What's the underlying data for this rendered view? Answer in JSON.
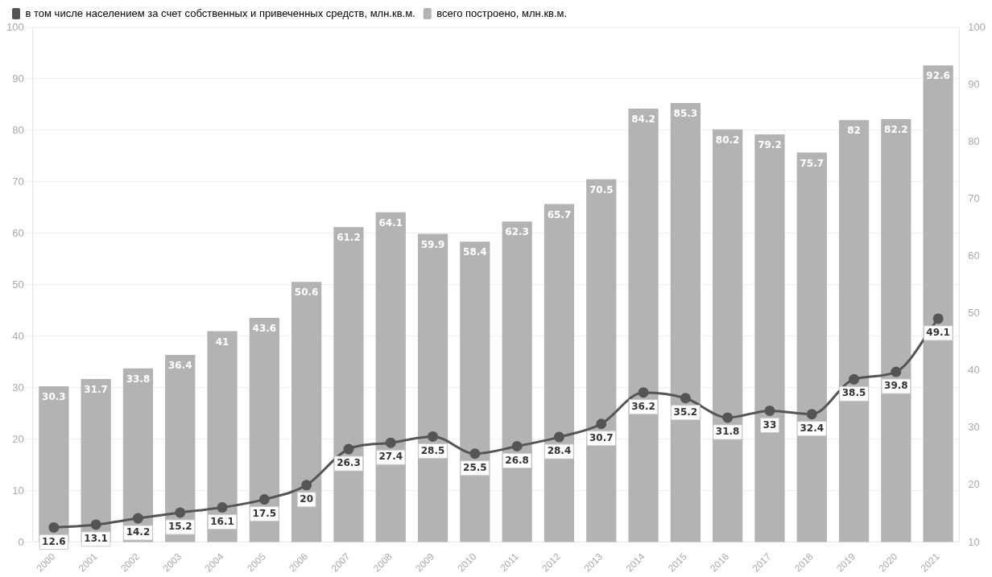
{
  "chart_data": {
    "type": "bar",
    "categories": [
      "2000",
      "2001",
      "2002",
      "2003",
      "2004",
      "2005",
      "2006",
      "2007",
      "2008",
      "2009",
      "2010",
      "2011",
      "2012",
      "2013",
      "2014",
      "2015",
      "2016",
      "2017",
      "2018",
      "2019",
      "2020",
      "2021"
    ],
    "series": [
      {
        "name": "в том числе населением за счет собственных и привеченных средств, млн.кв.м.",
        "type": "line",
        "axis": "y2",
        "color": "#555555",
        "values": [
          12.6,
          13.1,
          14.2,
          15.2,
          16.1,
          17.5,
          20,
          26.3,
          27.4,
          28.5,
          25.5,
          26.8,
          28.4,
          30.7,
          36.2,
          35.2,
          31.8,
          33,
          32.4,
          38.5,
          39.8,
          49.1
        ]
      },
      {
        "name": "всего построено, млн.кв.м.",
        "color": "#b3b3b3",
        "values": [
          30.3,
          31.7,
          33.8,
          36.4,
          41,
          43.6,
          50.6,
          61.2,
          64.1,
          59.9,
          58.4,
          62.3,
          65.7,
          70.5,
          84.2,
          85.3,
          80.2,
          79.2,
          75.7,
          82,
          82.2,
          92.6
        ]
      }
    ],
    "ylim": [
      0,
      100
    ],
    "yticks": [
      0,
      10,
      20,
      30,
      40,
      50,
      60,
      70,
      80,
      90,
      100
    ],
    "y2lim": [
      10,
      100
    ],
    "y2ticks": [
      10,
      20,
      30,
      40,
      50,
      60,
      70,
      80,
      90,
      100
    ],
    "grid": "y",
    "legend": "top left",
    "marker": "circle",
    "line_style": "solid",
    "data_labels": true
  }
}
